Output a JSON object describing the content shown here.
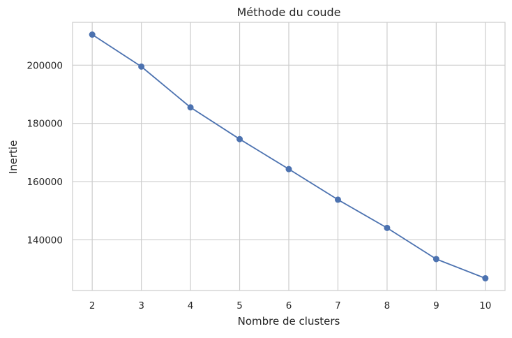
{
  "chart_data": {
    "type": "line",
    "title": "Méthode du coude",
    "xlabel": "Nombre de clusters",
    "ylabel": "Inertie",
    "x": [
      2,
      3,
      4,
      5,
      6,
      7,
      8,
      9,
      10
    ],
    "series": [
      {
        "values": [
          210500,
          199500,
          185500,
          174600,
          164300,
          153800,
          144100,
          133400,
          126800
        ]
      }
    ],
    "xticks": [
      "2",
      "3",
      "4",
      "5",
      "6",
      "7",
      "8",
      "9",
      "10"
    ],
    "yticks": [
      140000,
      160000,
      180000,
      200000
    ],
    "ytick_labels": [
      "140000",
      "160000",
      "180000",
      "200000"
    ],
    "xlim": [
      1.6,
      10.4
    ],
    "ylim": [
      122600,
      214700
    ],
    "grid": true,
    "line_color": "#4c72b0",
    "grid_color": "#cccccc",
    "frame_color": "#cccccc"
  }
}
